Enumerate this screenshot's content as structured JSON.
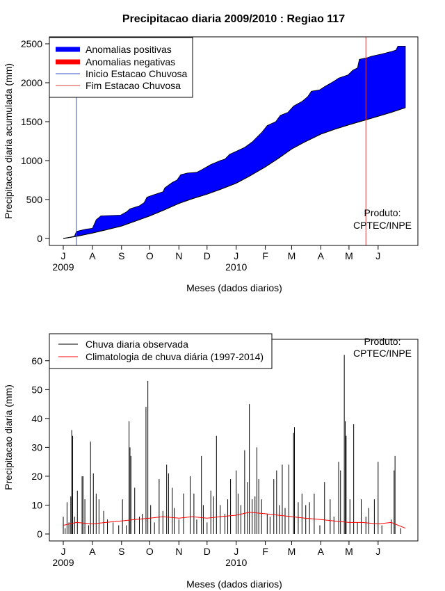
{
  "title": "Precipitacao diaria 2009/2010 : Regiao 117",
  "colors": {
    "positive": "#0000ff",
    "negative": "#ff0000",
    "onset_line": "#3b4fc4",
    "end_line": "#e23b3b",
    "observed": "#000000",
    "climatology": "#ff0000",
    "frame": "#000000"
  },
  "month_ticks": [
    "J",
    "A",
    "S",
    "O",
    "N",
    "D",
    "J",
    "F",
    "M",
    "A",
    "M",
    "J"
  ],
  "year_labels": [
    {
      "label": "2009",
      "month_index": 0
    },
    {
      "label": "2010",
      "month_index": 6
    }
  ],
  "chart_data": [
    {
      "type": "area",
      "xlabel": "Meses (dados diarios)",
      "ylabel": "Precipitacao diaria acumulada (mm)",
      "ylim": [
        0,
        2500
      ],
      "yticks": [
        0,
        500,
        1000,
        1500,
        2000,
        2500
      ],
      "start_date": "2009-07-01",
      "end_date": "2010-06-30",
      "legend_position": "top-left",
      "legend": [
        {
          "label": "Anomalias positivas",
          "style": "thick",
          "color": "#0000ff"
        },
        {
          "label": "Anomalias negativas",
          "style": "thick",
          "color": "#ff0000"
        },
        {
          "label": "Inicio Estacao Chuvosa",
          "style": "thin",
          "color": "#3b4fc4"
        },
        {
          "label": "Fim Estacao Chuvosa",
          "style": "thin",
          "color": "#e23b3b"
        }
      ],
      "observed_cumulative": [
        [
          "2009-07-01",
          0
        ],
        [
          "2009-07-08",
          15
        ],
        [
          "2009-07-13",
          30
        ],
        [
          "2009-07-15",
          90
        ],
        [
          "2009-07-25",
          120
        ],
        [
          "2009-08-01",
          130
        ],
        [
          "2009-08-05",
          240
        ],
        [
          "2009-08-10",
          290
        ],
        [
          "2009-08-31",
          300
        ],
        [
          "2009-09-06",
          340
        ],
        [
          "2009-09-10",
          380
        ],
        [
          "2009-09-20",
          420
        ],
        [
          "2009-09-25",
          460
        ],
        [
          "2009-09-28",
          530
        ],
        [
          "2009-10-05",
          560
        ],
        [
          "2009-10-15",
          600
        ],
        [
          "2009-10-17",
          650
        ],
        [
          "2009-10-25",
          720
        ],
        [
          "2009-10-30",
          750
        ],
        [
          "2009-11-03",
          820
        ],
        [
          "2009-11-10",
          840
        ],
        [
          "2009-11-20",
          850
        ],
        [
          "2009-11-25",
          880
        ],
        [
          "2009-12-05",
          950
        ],
        [
          "2009-12-15",
          1000
        ],
        [
          "2009-12-20",
          1020
        ],
        [
          "2009-12-25",
          1080
        ],
        [
          "2010-01-03",
          1130
        ],
        [
          "2010-01-10",
          1170
        ],
        [
          "2010-01-18",
          1240
        ],
        [
          "2010-01-28",
          1360
        ],
        [
          "2010-02-03",
          1450
        ],
        [
          "2010-02-12",
          1500
        ],
        [
          "2010-02-17",
          1580
        ],
        [
          "2010-02-25",
          1620
        ],
        [
          "2010-03-03",
          1700
        ],
        [
          "2010-03-12",
          1760
        ],
        [
          "2010-03-18",
          1820
        ],
        [
          "2010-03-22",
          1890
        ],
        [
          "2010-03-31",
          1910
        ],
        [
          "2010-04-05",
          1950
        ],
        [
          "2010-04-15",
          2020
        ],
        [
          "2010-04-20",
          2060
        ],
        [
          "2010-04-30",
          2100
        ],
        [
          "2010-05-05",
          2160
        ],
        [
          "2010-05-10",
          2190
        ],
        [
          "2010-05-12",
          2300
        ],
        [
          "2010-05-20",
          2320
        ],
        [
          "2010-05-25",
          2340
        ],
        [
          "2010-06-05",
          2370
        ],
        [
          "2010-06-15",
          2400
        ],
        [
          "2010-06-20",
          2420
        ],
        [
          "2010-06-22",
          2470
        ],
        [
          "2010-06-30",
          2470
        ]
      ],
      "climatology_cumulative": [
        [
          "2009-07-01",
          0
        ],
        [
          "2009-07-16",
          30
        ],
        [
          "2009-08-01",
          70
        ],
        [
          "2009-08-15",
          110
        ],
        [
          "2009-09-01",
          160
        ],
        [
          "2009-09-15",
          220
        ],
        [
          "2009-10-01",
          290
        ],
        [
          "2009-10-15",
          360
        ],
        [
          "2009-11-01",
          450
        ],
        [
          "2009-11-15",
          510
        ],
        [
          "2009-12-01",
          570
        ],
        [
          "2009-12-15",
          630
        ],
        [
          "2010-01-01",
          710
        ],
        [
          "2010-01-15",
          800
        ],
        [
          "2010-02-01",
          920
        ],
        [
          "2010-02-15",
          1030
        ],
        [
          "2010-03-01",
          1150
        ],
        [
          "2010-03-15",
          1240
        ],
        [
          "2010-04-01",
          1340
        ],
        [
          "2010-04-15",
          1400
        ],
        [
          "2010-05-01",
          1460
        ],
        [
          "2010-05-15",
          1510
        ],
        [
          "2010-06-01",
          1570
        ],
        [
          "2010-06-15",
          1620
        ],
        [
          "2010-06-30",
          1680
        ]
      ],
      "rainy_season_onset": "2009-07-15",
      "rainy_season_end": "2010-05-19",
      "annotation": [
        "Produto:",
        "CPTEC/INPE"
      ]
    },
    {
      "type": "bar",
      "xlabel": "Meses (dados diarios)",
      "ylabel": "Precipitacao diaria (mm)",
      "ylim": [
        0,
        65
      ],
      "yticks": [
        0,
        10,
        20,
        30,
        40,
        50,
        60
      ],
      "legend_position": "top-left",
      "legend": [
        {
          "label": "Chuva diaria observada",
          "color": "#000000"
        },
        {
          "label": "Climatologia de chuva diária (1997-2014)",
          "color": "#ff0000"
        }
      ],
      "daily_observed_peaks": [
        [
          "2009-07-01",
          6
        ],
        [
          "2009-07-03",
          2
        ],
        [
          "2009-07-05",
          11
        ],
        [
          "2009-07-07",
          4
        ],
        [
          "2009-07-09",
          13
        ],
        [
          "2009-07-10",
          36
        ],
        [
          "2009-07-11",
          34
        ],
        [
          "2009-07-13",
          6
        ],
        [
          "2009-07-16",
          15
        ],
        [
          "2009-07-21",
          20
        ],
        [
          "2009-07-22",
          20
        ],
        [
          "2009-07-24",
          12
        ],
        [
          "2009-07-28",
          3
        ],
        [
          "2009-07-30",
          32
        ],
        [
          "2009-08-02",
          21
        ],
        [
          "2009-08-05",
          14
        ],
        [
          "2009-08-08",
          12
        ],
        [
          "2009-08-13",
          8
        ],
        [
          "2009-08-17",
          5
        ],
        [
          "2009-08-23",
          4
        ],
        [
          "2009-08-29",
          3
        ],
        [
          "2009-09-02",
          12
        ],
        [
          "2009-09-06",
          3
        ],
        [
          "2009-09-09",
          39
        ],
        [
          "2009-09-10",
          30
        ],
        [
          "2009-09-11",
          27
        ],
        [
          "2009-09-15",
          16
        ],
        [
          "2009-09-20",
          6
        ],
        [
          "2009-09-23",
          7
        ],
        [
          "2009-09-27",
          44
        ],
        [
          "2009-09-29",
          53
        ],
        [
          "2009-10-02",
          10
        ],
        [
          "2009-10-06",
          4
        ],
        [
          "2009-10-11",
          19
        ],
        [
          "2009-10-15",
          8
        ],
        [
          "2009-10-19",
          24
        ],
        [
          "2009-10-21",
          21
        ],
        [
          "2009-10-25",
          16
        ],
        [
          "2009-10-27",
          9
        ],
        [
          "2009-11-01",
          5
        ],
        [
          "2009-11-06",
          14
        ],
        [
          "2009-11-13",
          20
        ],
        [
          "2009-11-17",
          14
        ],
        [
          "2009-11-20",
          5
        ],
        [
          "2009-11-25",
          27
        ],
        [
          "2009-11-27",
          10
        ],
        [
          "2009-12-01",
          4
        ],
        [
          "2009-12-05",
          15
        ],
        [
          "2009-12-08",
          13
        ],
        [
          "2009-12-11",
          34
        ],
        [
          "2009-12-15",
          10
        ],
        [
          "2009-12-20",
          7
        ],
        [
          "2009-12-23",
          12
        ],
        [
          "2009-12-26",
          19
        ],
        [
          "2010-01-01",
          22
        ],
        [
          "2010-01-03",
          14
        ],
        [
          "2010-01-06",
          10
        ],
        [
          "2010-01-10",
          29
        ],
        [
          "2010-01-13",
          18
        ],
        [
          "2010-01-15",
          45
        ],
        [
          "2010-01-18",
          12
        ],
        [
          "2010-01-21",
          13
        ],
        [
          "2010-01-23",
          30
        ],
        [
          "2010-01-25",
          19
        ],
        [
          "2010-01-28",
          12
        ],
        [
          "2010-02-03",
          7
        ],
        [
          "2010-02-06",
          6
        ],
        [
          "2010-02-10",
          19
        ],
        [
          "2010-02-13",
          22
        ],
        [
          "2010-02-16",
          10
        ],
        [
          "2010-02-19",
          24
        ],
        [
          "2010-02-22",
          9
        ],
        [
          "2010-02-26",
          24
        ],
        [
          "2010-03-03",
          35
        ],
        [
          "2010-03-04",
          37
        ],
        [
          "2010-03-08",
          11
        ],
        [
          "2010-03-12",
          14
        ],
        [
          "2010-03-16",
          10
        ],
        [
          "2010-03-20",
          11
        ],
        [
          "2010-03-25",
          14
        ],
        [
          "2010-03-31",
          3
        ],
        [
          "2010-04-05",
          18
        ],
        [
          "2010-04-11",
          12
        ],
        [
          "2010-04-15",
          6
        ],
        [
          "2010-04-20",
          25
        ],
        [
          "2010-04-22",
          22
        ],
        [
          "2010-04-26",
          62
        ],
        [
          "2010-04-27",
          39
        ],
        [
          "2010-04-28",
          34
        ],
        [
          "2010-05-02",
          12
        ],
        [
          "2010-05-06",
          38
        ],
        [
          "2010-05-10",
          4
        ],
        [
          "2010-05-14",
          12
        ],
        [
          "2010-05-19",
          6
        ],
        [
          "2010-05-22",
          9
        ],
        [
          "2010-05-28",
          12
        ],
        [
          "2010-06-01",
          25
        ],
        [
          "2010-06-05",
          3
        ],
        [
          "2010-06-15",
          5
        ],
        [
          "2010-06-18",
          22
        ],
        [
          "2010-06-19",
          27
        ],
        [
          "2010-06-25",
          2
        ]
      ],
      "climatology_daily": [
        [
          "2009-07-01",
          3
        ],
        [
          "2009-07-15",
          4
        ],
        [
          "2009-08-01",
          3.5
        ],
        [
          "2009-08-15",
          4
        ],
        [
          "2009-09-01",
          4.5
        ],
        [
          "2009-09-15",
          5
        ],
        [
          "2009-10-01",
          5.5
        ],
        [
          "2009-10-15",
          6
        ],
        [
          "2009-11-01",
          5.5
        ],
        [
          "2009-11-15",
          6
        ],
        [
          "2009-12-01",
          5.5
        ],
        [
          "2009-12-15",
          6
        ],
        [
          "2010-01-01",
          6.5
        ],
        [
          "2010-01-15",
          7.5
        ],
        [
          "2010-02-01",
          7
        ],
        [
          "2010-02-15",
          6.5
        ],
        [
          "2010-03-01",
          6
        ],
        [
          "2010-03-15",
          5.5
        ],
        [
          "2010-04-01",
          5
        ],
        [
          "2010-04-15",
          4.5
        ],
        [
          "2010-05-01",
          4
        ],
        [
          "2010-05-15",
          4
        ],
        [
          "2010-06-01",
          3.5
        ],
        [
          "2010-06-15",
          4
        ],
        [
          "2010-06-30",
          2
        ]
      ],
      "annotation": [
        "Produto:",
        "CPTEC/INPE"
      ]
    }
  ]
}
